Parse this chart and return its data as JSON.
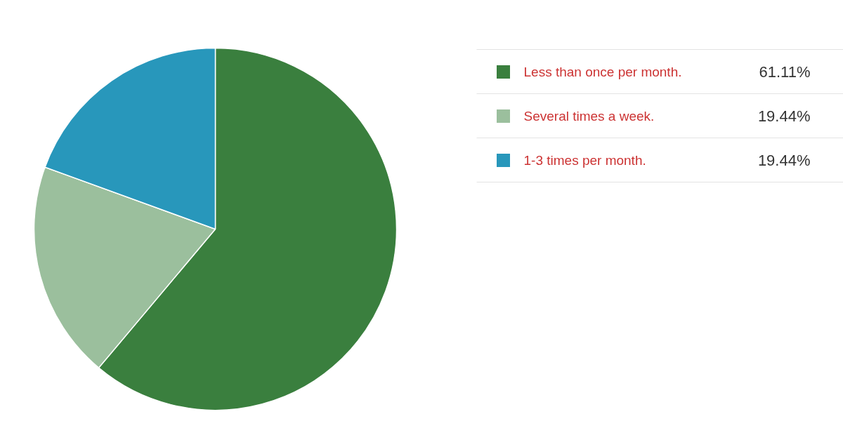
{
  "chart_data": {
    "type": "pie",
    "categories": [
      "Less than once per month.",
      "Several times a week.",
      "1-3 times per month."
    ],
    "values": [
      61.11,
      19.44,
      19.44
    ],
    "colors": [
      "#3a7f3e",
      "#9bbf9d",
      "#2897bb"
    ],
    "value_labels": [
      "61.11%",
      "19.44%",
      "19.44%"
    ],
    "legend": "right"
  }
}
